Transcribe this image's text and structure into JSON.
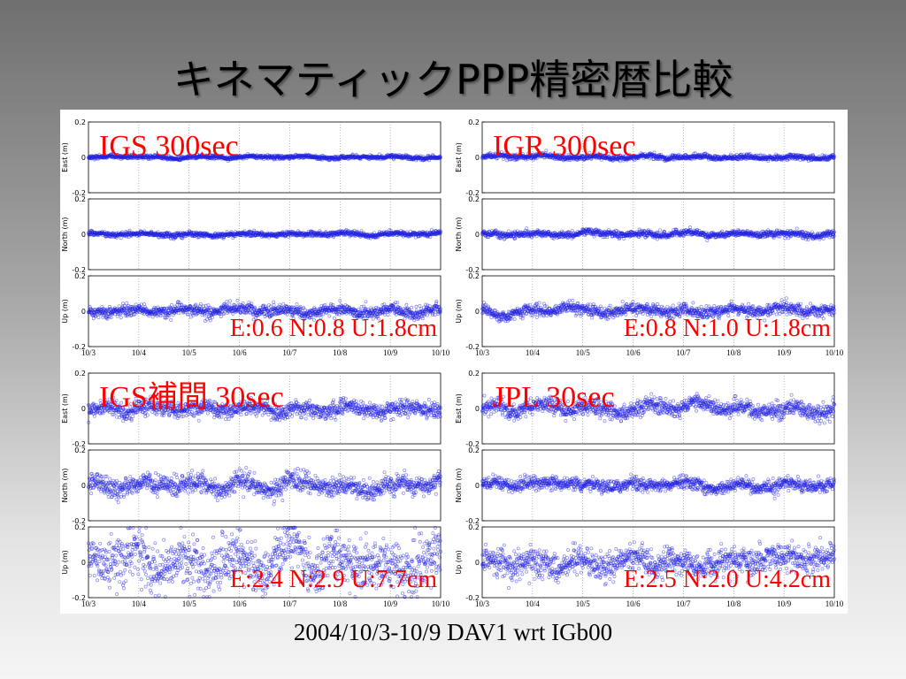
{
  "slide": {
    "title": "キネマティックPPP精密暦比較",
    "footer": "2004/10/3-10/9 DAV1 wrt IGb00"
  },
  "colors": {
    "data": "#1f1fe0",
    "label": "#ff0000"
  },
  "chart_data": [
    {
      "type": "scatter",
      "title": "IGS 300sec",
      "stats": "E:0.6 N:0.8 U:1.8cm",
      "x_ticks": [
        "10/3",
        "10/4",
        "10/5",
        "10/6",
        "10/7",
        "10/8",
        "10/9",
        "10/10"
      ],
      "panels": [
        {
          "ylabel": "East (m)",
          "ylim": [
            -0.2,
            0.2
          ],
          "y_ticks": [
            "0.2",
            "0",
            "-0.2"
          ],
          "rms_m": 0.006
        },
        {
          "ylabel": "North (m)",
          "ylim": [
            -0.2,
            0.2
          ],
          "y_ticks": [
            "0.2",
            "0",
            "-0.2"
          ],
          "rms_m": 0.008
        },
        {
          "ylabel": "Up (m)",
          "ylim": [
            -0.2,
            0.2
          ],
          "y_ticks": [
            "0.2",
            "0",
            "-0.2"
          ],
          "rms_m": 0.018
        }
      ]
    },
    {
      "type": "scatter",
      "title": "IGR 300sec",
      "stats": "E:0.8 N:1.0 U:1.8cm",
      "x_ticks": [
        "10/3",
        "10/4",
        "10/5",
        "10/6",
        "10/7",
        "10/8",
        "10/9",
        "10/10"
      ],
      "panels": [
        {
          "ylabel": "East (m)",
          "ylim": [
            -0.2,
            0.2
          ],
          "y_ticks": [
            "0.2",
            "0",
            "-0.2"
          ],
          "rms_m": 0.008
        },
        {
          "ylabel": "North (m)",
          "ylim": [
            -0.2,
            0.2
          ],
          "y_ticks": [
            "0.2",
            "0",
            "-0.2"
          ],
          "rms_m": 0.01
        },
        {
          "ylabel": "Up (m)",
          "ylim": [
            -0.2,
            0.2
          ],
          "y_ticks": [
            "0.2",
            "0",
            "-0.2"
          ],
          "rms_m": 0.018
        }
      ]
    },
    {
      "type": "scatter",
      "title": "IGS補間 30sec",
      "stats": "E:2.4 N:2.9 U:7.7cm",
      "x_ticks": [
        "10/3",
        "10/4",
        "10/5",
        "10/6",
        "10/7",
        "10/8",
        "10/9",
        "10/10"
      ],
      "panels": [
        {
          "ylabel": "East (m)",
          "ylim": [
            -0.2,
            0.2
          ],
          "y_ticks": [
            "0.2",
            "0",
            "-0.2"
          ],
          "rms_m": 0.024
        },
        {
          "ylabel": "North (m)",
          "ylim": [
            -0.2,
            0.2
          ],
          "y_ticks": [
            "0.2",
            "0",
            "-0.2"
          ],
          "rms_m": 0.029
        },
        {
          "ylabel": "Up (m)",
          "ylim": [
            -0.2,
            0.2
          ],
          "y_ticks": [
            "0.2",
            "0",
            "-0.2"
          ],
          "rms_m": 0.077
        }
      ]
    },
    {
      "type": "scatter",
      "title": "JPL 30sec",
      "stats": "E:2.5 N:2.0 U:4.2cm",
      "x_ticks": [
        "10/3",
        "10/4",
        "10/5",
        "10/6",
        "10/7",
        "10/8",
        "10/9",
        "10/10"
      ],
      "panels": [
        {
          "ylabel": "East (m)",
          "ylim": [
            -0.2,
            0.2
          ],
          "y_ticks": [
            "0.2",
            "0",
            "-0.2"
          ],
          "rms_m": 0.025
        },
        {
          "ylabel": "North (m)",
          "ylim": [
            -0.2,
            0.2
          ],
          "y_ticks": [
            "0.2",
            "0",
            "-0.2"
          ],
          "rms_m": 0.02
        },
        {
          "ylabel": "Up (m)",
          "ylim": [
            -0.2,
            0.2
          ],
          "y_ticks": [
            "0.2",
            "0",
            "-0.2"
          ],
          "rms_m": 0.042
        }
      ]
    }
  ]
}
